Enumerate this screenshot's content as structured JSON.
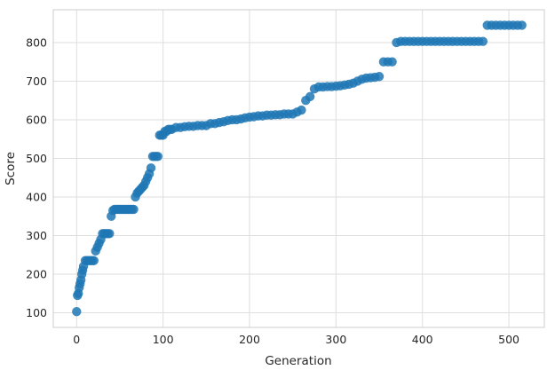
{
  "chart_data": {
    "type": "scatter",
    "title": "",
    "xlabel": "Generation",
    "ylabel": "Score",
    "xlim": [
      -27,
      541
    ],
    "ylim": [
      62,
      885
    ],
    "xticks": [
      0,
      100,
      200,
      300,
      400,
      500
    ],
    "yticks": [
      100,
      200,
      300,
      400,
      500,
      600,
      700,
      800
    ],
    "grid": true,
    "colors": {
      "marker": "#1f77b4",
      "grid": "#dedede",
      "frame": "#cccccc",
      "text": "#262626"
    },
    "series": [
      {
        "marker": "circle",
        "x": [
          0,
          1,
          2,
          3,
          4,
          5,
          6,
          7,
          8,
          10,
          12,
          14,
          16,
          18,
          20,
          22,
          24,
          26,
          28,
          30,
          32,
          34,
          36,
          38,
          40,
          42,
          44,
          46,
          48,
          50,
          52,
          54,
          56,
          58,
          60,
          62,
          64,
          66,
          68,
          70,
          72,
          74,
          76,
          78,
          80,
          82,
          84,
          86,
          88,
          90,
          92,
          94,
          96,
          98,
          100,
          102,
          104,
          106,
          108,
          110,
          115,
          120,
          125,
          130,
          135,
          140,
          145,
          150,
          155,
          160,
          165,
          170,
          175,
          180,
          185,
          190,
          195,
          200,
          205,
          210,
          215,
          220,
          225,
          230,
          235,
          240,
          245,
          250,
          255,
          260,
          265,
          270,
          275,
          280,
          285,
          290,
          295,
          300,
          305,
          310,
          315,
          320,
          325,
          330,
          335,
          340,
          345,
          350,
          355,
          360,
          365,
          370,
          375,
          380,
          385,
          390,
          395,
          400,
          405,
          410,
          415,
          420,
          425,
          430,
          435,
          440,
          445,
          450,
          455,
          460,
          465,
          470,
          475,
          480,
          485,
          490,
          495,
          500,
          505,
          510,
          515
        ],
        "y": [
          103,
          145,
          150,
          165,
          175,
          185,
          200,
          210,
          220,
          235,
          235,
          235,
          235,
          235,
          235,
          260,
          270,
          280,
          290,
          305,
          305,
          305,
          305,
          305,
          350,
          365,
          368,
          368,
          368,
          368,
          368,
          368,
          368,
          368,
          368,
          368,
          368,
          368,
          400,
          410,
          415,
          420,
          425,
          430,
          440,
          450,
          460,
          475,
          505,
          505,
          505,
          505,
          560,
          560,
          560,
          570,
          570,
          575,
          575,
          575,
          580,
          580,
          582,
          583,
          583,
          585,
          585,
          585,
          590,
          590,
          593,
          595,
          598,
          600,
          600,
          602,
          605,
          607,
          608,
          610,
          610,
          612,
          612,
          613,
          613,
          615,
          615,
          615,
          620,
          625,
          650,
          660,
          680,
          685,
          685,
          686,
          686,
          687,
          688,
          690,
          692,
          695,
          700,
          705,
          708,
          709,
          710,
          712,
          750,
          750,
          750,
          800,
          803,
          803,
          803,
          803,
          803,
          803,
          803,
          803,
          803,
          803,
          803,
          803,
          803,
          803,
          803,
          803,
          803,
          803,
          803,
          803,
          845,
          845,
          845,
          845,
          845,
          845,
          845,
          845,
          845
        ]
      }
    ]
  }
}
